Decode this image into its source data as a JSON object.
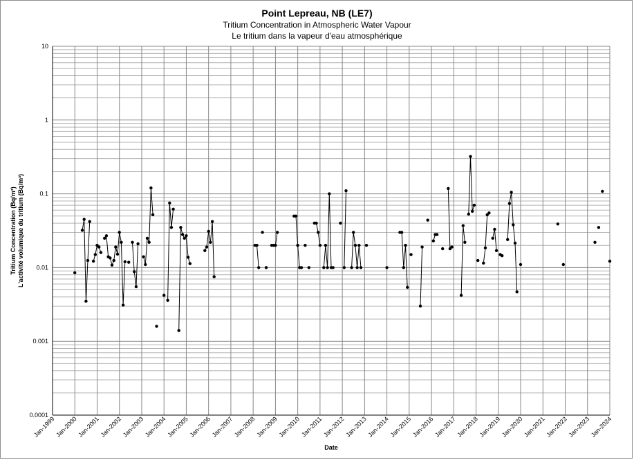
{
  "chart_data": {
    "type": "scatter",
    "title": "Point Lepreau, NB (LE7)",
    "subtitle": "Tritium Concentration in Atmospheric Water Vapour",
    "subtitle_fr": "Le tritium dans la vapeur d'eau atmosphérique",
    "xlabel": "Date",
    "ylabel": "Tritium Concentration (Bq/m³)",
    "ylabel_fr": "L'activité volumique du tritium (Bq/m³)",
    "y_scale": "log",
    "ylim": [
      0.0001,
      10
    ],
    "y_ticks": [
      {
        "value": 0.0001,
        "label": "0.0001"
      },
      {
        "value": 0.001,
        "label": "0.001"
      },
      {
        "value": 0.01,
        "label": "0.01"
      },
      {
        "value": 0.1,
        "label": "0.1"
      },
      {
        "value": 1,
        "label": "1"
      },
      {
        "value": 10,
        "label": "10"
      }
    ],
    "x_ticks": [
      "Jan-1999",
      "Jan-2000",
      "Jan-2001",
      "Jan-2002",
      "Jan-2003",
      "Jan-2004",
      "Jan-2005",
      "Jan-2006",
      "Jan-2007",
      "Jan-2008",
      "Jan-2009",
      "Jan-2010",
      "Jan-2011",
      "Jan-2012",
      "Jan-2013",
      "Jan-2014",
      "Jan-2015",
      "Jan-2016",
      "Jan-2017",
      "Jan-2018",
      "Jan-2019",
      "Jan-2020",
      "Jan-2021",
      "Jan-2022",
      "Jan-2023",
      "Jan-2024"
    ],
    "grid": true,
    "series_color": "#000000",
    "segments": [
      [
        [
          "2000-01",
          0.0085
        ]
      ],
      [
        [
          "2000-05",
          0.032
        ],
        [
          "2000-06",
          0.045
        ],
        [
          "2000-07",
          0.0035
        ],
        [
          "2000-08",
          0.0125
        ],
        [
          "2000-09",
          0.042
        ]
      ],
      [
        [
          "2000-11",
          0.0122
        ],
        [
          "2000-12",
          0.015
        ],
        [
          "2001-01",
          0.02
        ],
        [
          "2001-02",
          0.019
        ],
        [
          "2001-03",
          0.016
        ]
      ],
      [
        [
          "2001-05",
          0.025
        ],
        [
          "2001-06",
          0.027
        ],
        [
          "2001-07",
          0.014
        ],
        [
          "2001-08",
          0.0135
        ],
        [
          "2001-09",
          0.0108
        ],
        [
          "2001-10",
          0.0125
        ],
        [
          "2001-11",
          0.019
        ],
        [
          "2001-12",
          0.0152
        ],
        [
          "2002-01",
          0.03
        ],
        [
          "2002-02",
          0.022
        ],
        [
          "2002-03",
          0.0031
        ],
        [
          "2002-04",
          0.012
        ]
      ],
      [
        [
          "2002-06",
          0.0118
        ]
      ],
      [
        [
          "2002-08",
          0.022
        ],
        [
          "2002-09",
          0.0088
        ],
        [
          "2002-10",
          0.0055
        ],
        [
          "2002-11",
          0.021
        ]
      ],
      [
        [
          "2003-02",
          0.014
        ],
        [
          "2003-03",
          0.011
        ],
        [
          "2003-04",
          0.025
        ],
        [
          "2003-05",
          0.022
        ],
        [
          "2003-06",
          0.12
        ],
        [
          "2003-07",
          0.052
        ]
      ],
      [
        [
          "2003-09",
          0.0016
        ]
      ],
      [
        [
          "2004-01",
          0.0042
        ]
      ],
      [
        [
          "2004-03",
          0.0036
        ],
        [
          "2004-04",
          0.075
        ],
        [
          "2004-05",
          0.035
        ],
        [
          "2004-06",
          0.062
        ]
      ],
      [
        [
          "2004-09",
          0.0014
        ],
        [
          "2004-10",
          0.035
        ],
        [
          "2004-11",
          0.028
        ],
        [
          "2004-12",
          0.025
        ],
        [
          "2005-01",
          0.027
        ],
        [
          "2005-02",
          0.0138
        ],
        [
          "2005-03",
          0.0113
        ]
      ],
      [
        [
          "2005-11",
          0.017
        ],
        [
          "2005-12",
          0.019
        ],
        [
          "2006-01",
          0.031
        ],
        [
          "2006-02",
          0.022
        ],
        [
          "2006-03",
          0.042
        ],
        [
          "2006-04",
          0.0075
        ]
      ],
      [
        [
          "2008-02",
          0.02
        ],
        [
          "2008-03",
          0.02
        ],
        [
          "2008-04",
          0.01
        ]
      ],
      [
        [
          "2008-06",
          0.03
        ]
      ],
      [
        [
          "2008-08",
          0.01
        ]
      ],
      [
        [
          "2008-11",
          0.02
        ],
        [
          "2008-12",
          0.02
        ],
        [
          "2009-01",
          0.02
        ],
        [
          "2009-02",
          0.03
        ]
      ],
      [
        [
          "2009-11",
          0.05
        ],
        [
          "2009-12",
          0.05
        ],
        [
          "2010-01",
          0.02
        ],
        [
          "2010-02",
          0.01
        ],
        [
          "2010-03",
          0.01
        ]
      ],
      [
        [
          "2010-05",
          0.02
        ]
      ],
      [
        [
          "2010-07",
          0.01
        ]
      ],
      [
        [
          "2010-10",
          0.04
        ],
        [
          "2010-11",
          0.04
        ],
        [
          "2010-12",
          0.03
        ],
        [
          "2011-01",
          0.02
        ]
      ],
      [
        [
          "2011-03",
          0.01
        ],
        [
          "2011-04",
          0.02
        ],
        [
          "2011-05",
          0.01
        ],
        [
          "2011-06",
          0.1
        ],
        [
          "2011-07",
          0.01
        ],
        [
          "2011-08",
          0.01
        ]
      ],
      [
        [
          "2011-12",
          0.04
        ]
      ],
      [
        [
          "2012-02",
          0.01
        ],
        [
          "2012-03",
          0.11
        ]
      ],
      [
        [
          "2012-06",
          0.01
        ],
        [
          "2012-07",
          0.03
        ],
        [
          "2012-08",
          0.02
        ],
        [
          "2012-09",
          0.01
        ],
        [
          "2012-10",
          0.02
        ],
        [
          "2012-11",
          0.01
        ]
      ],
      [
        [
          "2013-02",
          0.02
        ]
      ],
      [
        [
          "2014-01",
          0.01
        ]
      ],
      [
        [
          "2014-08",
          0.03
        ],
        [
          "2014-09",
          0.03
        ],
        [
          "2014-10",
          0.01
        ],
        [
          "2014-11",
          0.02
        ],
        [
          "2014-12",
          0.0054
        ]
      ],
      [
        [
          "2015-02",
          0.015
        ]
      ],
      [
        [
          "2015-07",
          0.003
        ],
        [
          "2015-08",
          0.019
        ]
      ],
      [
        [
          "2015-11",
          0.044
        ]
      ],
      [
        [
          "2016-02",
          0.023
        ],
        [
          "2016-03",
          0.028
        ],
        [
          "2016-04",
          0.028
        ]
      ],
      [
        [
          "2016-07",
          0.018
        ]
      ],
      [
        [
          "2016-10",
          0.118
        ],
        [
          "2016-11",
          0.018
        ],
        [
          "2016-12",
          0.019
        ]
      ],
      [
        [
          "2017-05",
          0.0042
        ],
        [
          "2017-06",
          0.037
        ],
        [
          "2017-07",
          0.022
        ]
      ],
      [
        [
          "2017-09",
          0.053
        ],
        [
          "2017-10",
          0.32
        ],
        [
          "2017-11",
          0.058
        ],
        [
          "2017-12",
          0.07
        ]
      ],
      [
        [
          "2018-02",
          0.0125
        ]
      ],
      [
        [
          "2018-05",
          0.0115
        ],
        [
          "2018-06",
          0.0185
        ],
        [
          "2018-07",
          0.052
        ],
        [
          "2018-08",
          0.055
        ]
      ],
      [
        [
          "2018-10",
          0.025
        ],
        [
          "2018-11",
          0.033
        ],
        [
          "2018-12",
          0.017
        ]
      ],
      [
        [
          "2019-02",
          0.015
        ],
        [
          "2019-03",
          0.0145
        ]
      ],
      [
        [
          "2019-06",
          0.024
        ],
        [
          "2019-07",
          0.074
        ],
        [
          "2019-08",
          0.105
        ],
        [
          "2019-09",
          0.038
        ],
        [
          "2019-10",
          0.0215
        ],
        [
          "2019-11",
          0.0047
        ]
      ],
      [
        [
          "2020-01",
          0.011
        ]
      ],
      [
        [
          "2021-09",
          0.039
        ]
      ],
      [
        [
          "2021-12",
          0.011
        ]
      ],
      [
        [
          "2023-05",
          0.022
        ]
      ],
      [
        [
          "2023-07",
          0.035
        ]
      ],
      [
        [
          "2023-09",
          0.108
        ]
      ],
      [
        [
          "2024-01",
          0.0122
        ]
      ]
    ]
  }
}
